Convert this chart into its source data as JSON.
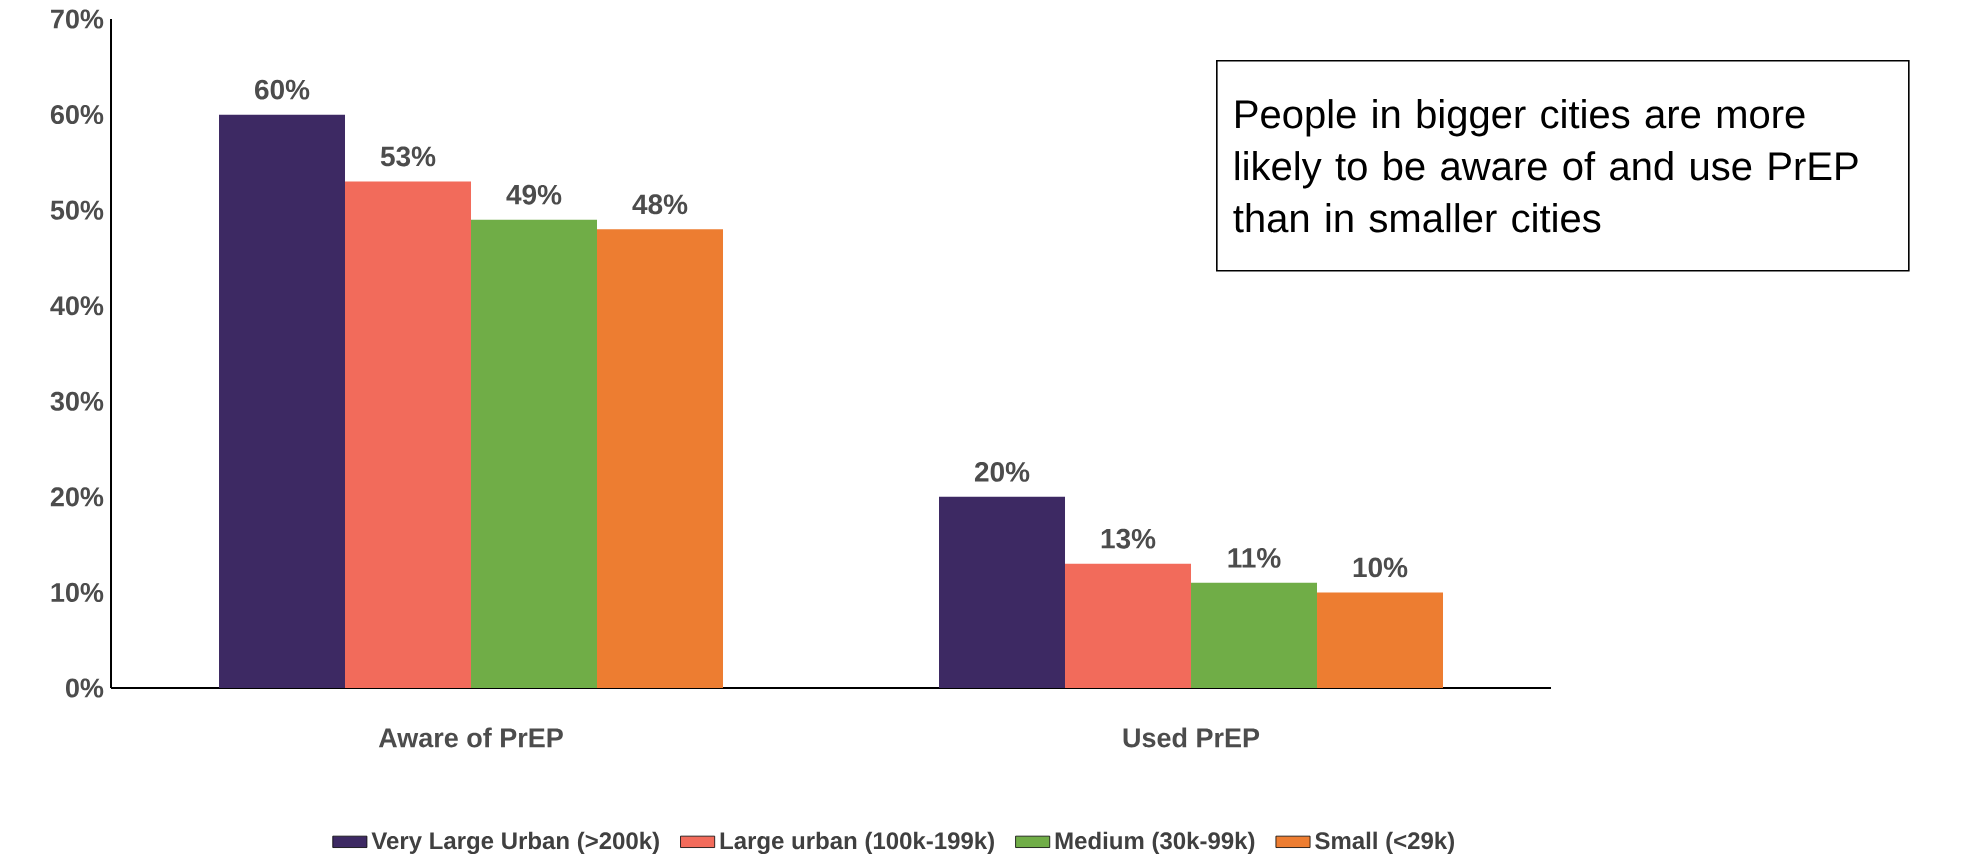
{
  "chart_data": {
    "type": "bar",
    "categories": [
      "Aware of PrEP",
      "Used PrEP"
    ],
    "series": [
      {
        "name": "Very Large Urban (>200k)",
        "color": "#3d2963",
        "values": [
          60,
          20
        ],
        "value_labels": [
          "60%",
          "20%"
        ]
      },
      {
        "name": "Large urban (100k-199k)",
        "color": "#f26b5b",
        "values": [
          53,
          13
        ],
        "value_labels": [
          "53%",
          "13%"
        ]
      },
      {
        "name": "Medium (30k-99k)",
        "color": "#70ad47",
        "values": [
          49,
          11
        ],
        "value_labels": [
          "49%",
          "11%"
        ]
      },
      {
        "name": "Small (<29k)",
        "color": "#ed7d31",
        "values": [
          48,
          10
        ],
        "value_labels": [
          "48%",
          "10%"
        ]
      }
    ],
    "ylim": [
      0,
      70
    ],
    "yticks": [
      {
        "value": 0,
        "label": "0%"
      },
      {
        "value": 10,
        "label": "10%"
      },
      {
        "value": 20,
        "label": "20%"
      },
      {
        "value": 30,
        "label": "30%"
      },
      {
        "value": 40,
        "label": "40%"
      },
      {
        "value": 50,
        "label": "50%"
      },
      {
        "value": 60,
        "label": "60%"
      },
      {
        "value": 70,
        "label": "70%"
      }
    ],
    "grid": false,
    "legend": "bottom",
    "annotations": [
      "People in bigger cities are more likely to be aware of and use PrEP than in smaller cities"
    ]
  }
}
